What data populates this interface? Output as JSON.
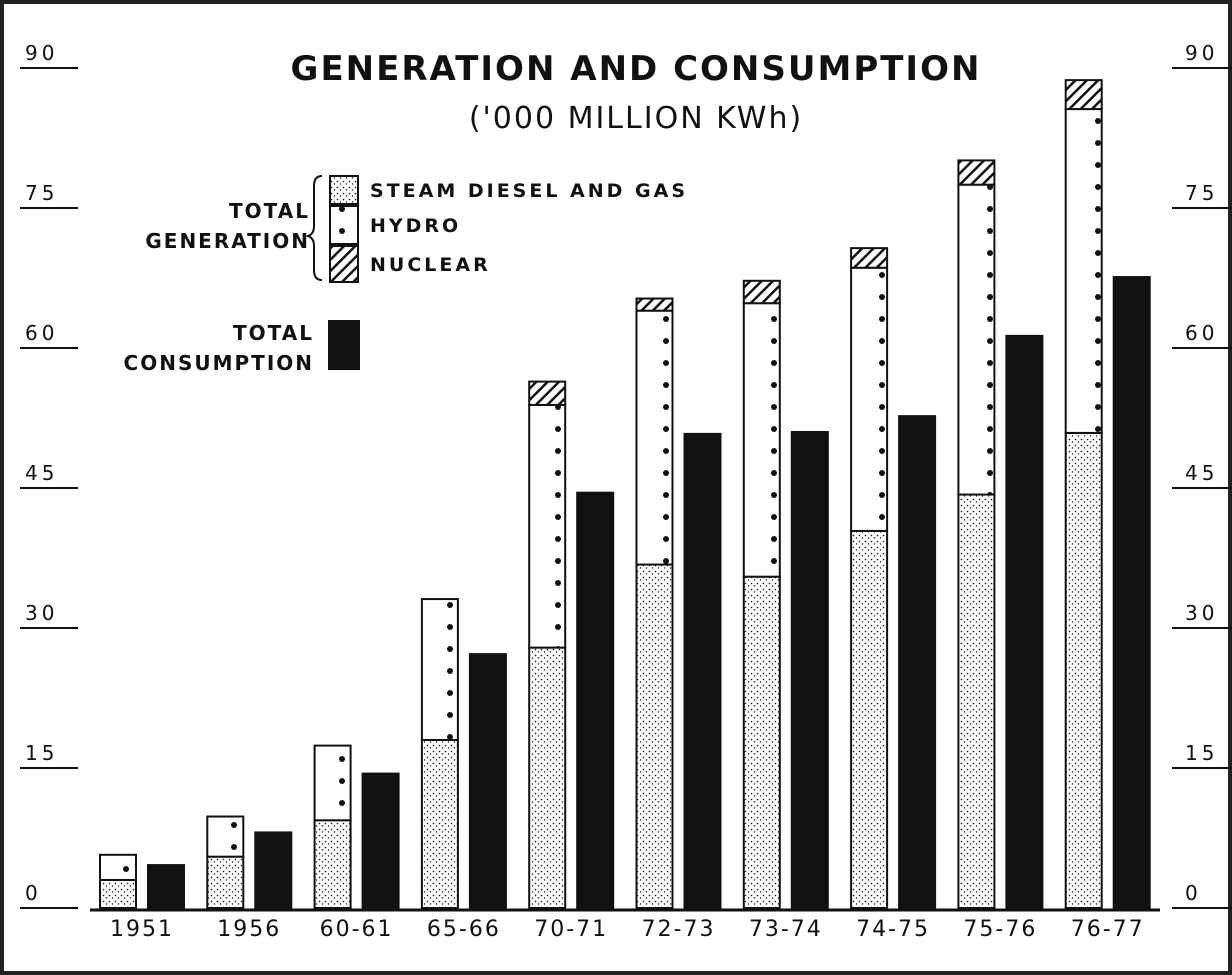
{
  "chart_data": {
    "type": "stacked-bar",
    "title": "GENERATION AND CONSUMPTION",
    "subtitle": "('000 MILLION KWh)",
    "generation_label": "TOTAL GENERATION",
    "categories": [
      "1951",
      "1956",
      "60-61",
      "65-66",
      "70-71",
      "72-73",
      "73-74",
      "74-75",
      "75-76",
      "76-77"
    ],
    "series": [
      {
        "name": "STEAM DIESEL AND GAS",
        "color": "#111111",
        "pattern": "stipple",
        "stack": "generation",
        "values": [
          3.0,
          5.5,
          9.4,
          18.0,
          27.9,
          36.8,
          35.5,
          40.4,
          44.3,
          50.9
        ]
      },
      {
        "name": "HYDRO",
        "color": "#111111",
        "pattern": "dots",
        "stack": "generation",
        "values": [
          2.7,
          4.3,
          8.0,
          15.1,
          26.0,
          27.2,
          29.3,
          28.2,
          33.2,
          34.7
        ]
      },
      {
        "name": "NUCLEAR",
        "color": "#111111",
        "pattern": "hatch",
        "stack": "generation",
        "values": [
          0,
          0,
          0,
          0,
          2.5,
          1.3,
          2.4,
          2.1,
          2.6,
          3.1
        ]
      },
      {
        "name": "TOTAL CONSUMPTION",
        "color": "#111111",
        "pattern": "solid",
        "stack": "consumption",
        "values": [
          4.6,
          8.1,
          14.4,
          27.2,
          44.5,
          50.8,
          51.0,
          52.7,
          61.3,
          67.6
        ]
      }
    ],
    "ylim": [
      0,
      90
    ],
    "yticks": [
      0,
      15,
      30,
      45,
      60,
      75,
      90
    ],
    "right_axis": true
  }
}
